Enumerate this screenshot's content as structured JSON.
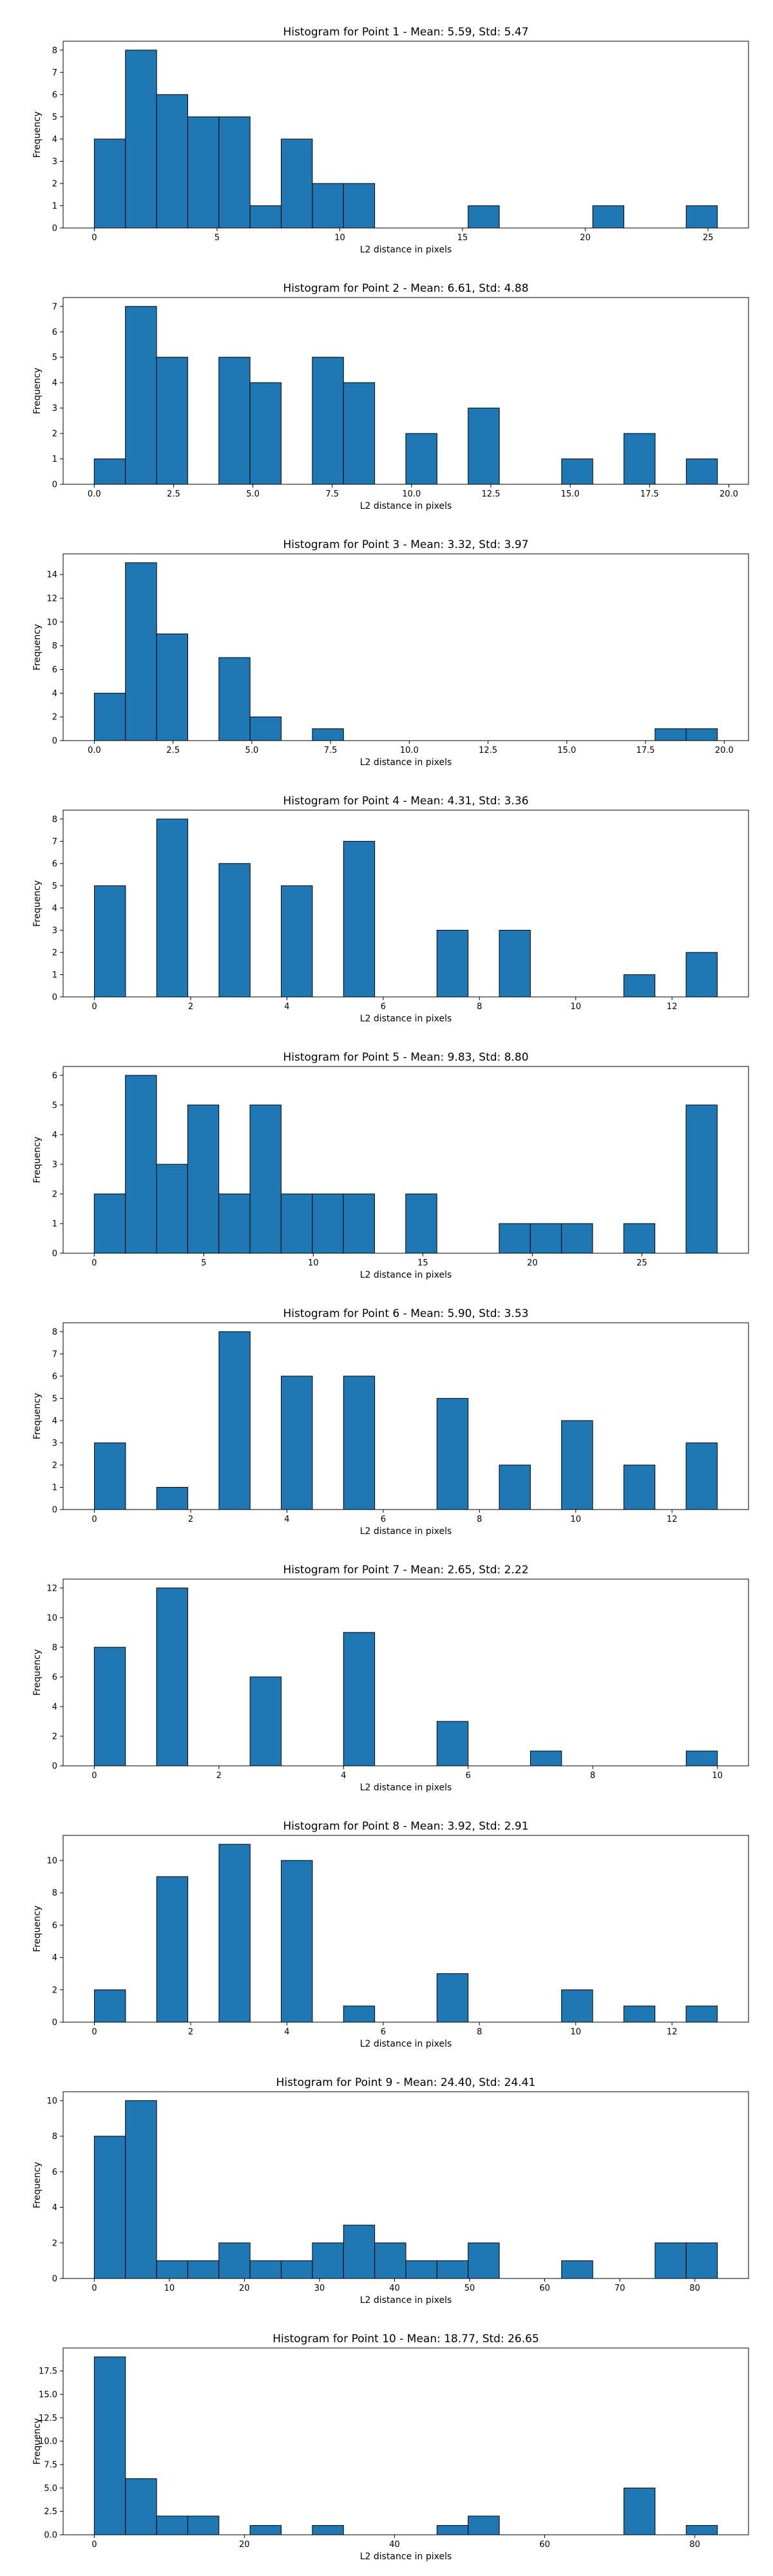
{
  "colors": {
    "bar_fill": "#1f77b4",
    "bar_edge": "#000000"
  },
  "chart_data": [
    {
      "type": "bar",
      "title": "Histogram for Point 1 - Mean: 5.59, Std: 5.47",
      "xlabel": "L2 distance in pixels",
      "ylabel": "Frequency",
      "grid": false,
      "xlim": [
        -1.27,
        26.65
      ],
      "ylim": [
        0,
        8.4
      ],
      "bin_start": 0.0,
      "bin_width": 1.269,
      "values": [
        4,
        8,
        6,
        5,
        5,
        1,
        4,
        2,
        2,
        0,
        0,
        0,
        1,
        0,
        0,
        0,
        1,
        0,
        0,
        1
      ],
      "xticks": [
        0,
        5,
        10,
        15,
        20,
        25
      ],
      "xtick_labels": [
        "0",
        "5",
        "10",
        "15",
        "20",
        "25"
      ],
      "yticks": [
        0,
        1,
        2,
        3,
        4,
        5,
        6,
        7,
        8
      ],
      "ytick_labels": [
        "0",
        "1",
        "2",
        "3",
        "4",
        "5",
        "6",
        "7",
        "8"
      ]
    },
    {
      "type": "bar",
      "title": "Histogram for Point 2 - Mean: 6.61, Std: 4.88",
      "xlabel": "L2 distance in pixels",
      "ylabel": "Frequency",
      "grid": false,
      "xlim": [
        -0.98,
        20.62
      ],
      "ylim": [
        0,
        7.35
      ],
      "bin_start": 0.0,
      "bin_width": 0.982,
      "values": [
        1,
        7,
        5,
        0,
        5,
        4,
        0,
        5,
        4,
        0,
        2,
        0,
        3,
        0,
        0,
        1,
        0,
        2,
        0,
        1
      ],
      "xticks": [
        0,
        2.5,
        5,
        7.5,
        10,
        12.5,
        15,
        17.5,
        20
      ],
      "xtick_labels": [
        "0.0",
        "2.5",
        "5.0",
        "7.5",
        "10.0",
        "12.5",
        "15.0",
        "17.5",
        "20.0"
      ],
      "yticks": [
        0,
        1,
        2,
        3,
        4,
        5,
        6,
        7
      ],
      "ytick_labels": [
        "0",
        "1",
        "2",
        "3",
        "4",
        "5",
        "6",
        "7"
      ]
    },
    {
      "type": "bar",
      "title": "Histogram for Point 3 - Mean: 3.32, Std: 3.97",
      "xlabel": "L2 distance in pixels",
      "ylabel": "Frequency",
      "grid": false,
      "xlim": [
        -0.99,
        20.77
      ],
      "ylim": [
        0,
        15.75
      ],
      "bin_start": 0.0,
      "bin_width": 0.989,
      "values": [
        4,
        15,
        9,
        0,
        7,
        2,
        0,
        1,
        0,
        0,
        0,
        0,
        0,
        0,
        0,
        0,
        0,
        0,
        1,
        1
      ],
      "xticks": [
        0,
        2.5,
        5,
        7.5,
        10,
        12.5,
        15,
        17.5,
        20
      ],
      "xtick_labels": [
        "0.0",
        "2.5",
        "5.0",
        "7.5",
        "10.0",
        "12.5",
        "15.0",
        "17.5",
        "20.0"
      ],
      "yticks": [
        0,
        2,
        4,
        6,
        8,
        10,
        12,
        14
      ],
      "ytick_labels": [
        "0",
        "2",
        "4",
        "6",
        "8",
        "10",
        "12",
        "14"
      ]
    },
    {
      "type": "bar",
      "title": "Histogram for Point 4 - Mean: 4.31, Std: 3.36",
      "xlabel": "L2 distance in pixels",
      "ylabel": "Frequency",
      "grid": false,
      "xlim": [
        -0.65,
        13.59
      ],
      "ylim": [
        0,
        8.4
      ],
      "bin_start": 0.0,
      "bin_width": 0.647,
      "values": [
        5,
        0,
        8,
        0,
        6,
        0,
        5,
        0,
        7,
        0,
        0,
        3,
        0,
        3,
        0,
        0,
        0,
        1,
        0,
        2
      ],
      "xticks": [
        0,
        2,
        4,
        6,
        8,
        10,
        12
      ],
      "xtick_labels": [
        "0",
        "2",
        "4",
        "6",
        "8",
        "10",
        "12"
      ],
      "yticks": [
        0,
        1,
        2,
        3,
        4,
        5,
        6,
        7,
        8
      ],
      "ytick_labels": [
        "0",
        "1",
        "2",
        "3",
        "4",
        "5",
        "6",
        "7",
        "8"
      ]
    },
    {
      "type": "bar",
      "title": "Histogram for Point 5 - Mean: 9.83, Std: 8.80",
      "xlabel": "L2 distance in pixels",
      "ylabel": "Frequency",
      "grid": false,
      "xlim": [
        -1.42,
        29.87
      ],
      "ylim": [
        0,
        6.3
      ],
      "bin_start": 0.0,
      "bin_width": 1.422,
      "values": [
        2,
        6,
        3,
        5,
        2,
        5,
        2,
        2,
        2,
        0,
        2,
        0,
        0,
        1,
        1,
        1,
        0,
        1,
        0,
        5
      ],
      "xticks": [
        0,
        5,
        10,
        15,
        20,
        25
      ],
      "xtick_labels": [
        "0",
        "5",
        "10",
        "15",
        "20",
        "25"
      ],
      "yticks": [
        0,
        1,
        2,
        3,
        4,
        5,
        6
      ],
      "ytick_labels": [
        "0",
        "1",
        "2",
        "3",
        "4",
        "5",
        "6"
      ]
    },
    {
      "type": "bar",
      "title": "Histogram for Point 6 - Mean: 5.90, Std: 3.53",
      "xlabel": "L2 distance in pixels",
      "ylabel": "Frequency",
      "grid": false,
      "xlim": [
        -0.65,
        13.59
      ],
      "ylim": [
        0,
        8.4
      ],
      "bin_start": 0.0,
      "bin_width": 0.647,
      "values": [
        3,
        0,
        1,
        0,
        8,
        0,
        6,
        0,
        6,
        0,
        0,
        5,
        0,
        2,
        0,
        4,
        0,
        2,
        0,
        3
      ],
      "xticks": [
        0,
        2,
        4,
        6,
        8,
        10,
        12
      ],
      "xtick_labels": [
        "0",
        "2",
        "4",
        "6",
        "8",
        "10",
        "12"
      ],
      "yticks": [
        0,
        1,
        2,
        3,
        4,
        5,
        6,
        7,
        8
      ],
      "ytick_labels": [
        "0",
        "1",
        "2",
        "3",
        "4",
        "5",
        "6",
        "7",
        "8"
      ]
    },
    {
      "type": "bar",
      "title": "Histogram for Point 7 - Mean: 2.65, Std: 2.22",
      "xlabel": "L2 distance in pixels",
      "ylabel": "Frequency",
      "grid": false,
      "xlim": [
        -0.5,
        10.5
      ],
      "ylim": [
        0,
        12.6
      ],
      "bin_start": 0.0,
      "bin_width": 0.5,
      "values": [
        8,
        0,
        12,
        0,
        0,
        6,
        0,
        0,
        9,
        0,
        0,
        3,
        0,
        0,
        1,
        0,
        0,
        0,
        0,
        1
      ],
      "xticks": [
        0,
        2,
        4,
        6,
        8,
        10
      ],
      "xtick_labels": [
        "0",
        "2",
        "4",
        "6",
        "8",
        "10"
      ],
      "yticks": [
        0,
        2,
        4,
        6,
        8,
        10,
        12
      ],
      "ytick_labels": [
        "0",
        "2",
        "4",
        "6",
        "8",
        "10",
        "12"
      ]
    },
    {
      "type": "bar",
      "title": "Histogram for Point 8 - Mean: 3.92, Std: 2.91",
      "xlabel": "L2 distance in pixels",
      "ylabel": "Frequency",
      "grid": false,
      "xlim": [
        -0.65,
        13.59
      ],
      "ylim": [
        0,
        11.55
      ],
      "bin_start": 0.0,
      "bin_width": 0.647,
      "values": [
        2,
        0,
        9,
        0,
        11,
        0,
        10,
        0,
        1,
        0,
        0,
        3,
        0,
        0,
        0,
        2,
        0,
        1,
        0,
        1
      ],
      "xticks": [
        0,
        2,
        4,
        6,
        8,
        10,
        12
      ],
      "xtick_labels": [
        "0",
        "2",
        "4",
        "6",
        "8",
        "10",
        "12"
      ],
      "yticks": [
        0,
        2,
        4,
        6,
        8,
        10
      ],
      "ytick_labels": [
        "0",
        "2",
        "4",
        "6",
        "8",
        "10"
      ]
    },
    {
      "type": "bar",
      "title": "Histogram for Point 9 - Mean: 24.40, Std: 24.41",
      "xlabel": "L2 distance in pixels",
      "ylabel": "Frequency",
      "grid": false,
      "xlim": [
        -4.15,
        87.15
      ],
      "ylim": [
        0,
        10.5
      ],
      "bin_start": 0.0,
      "bin_width": 4.15,
      "values": [
        8,
        10,
        1,
        1,
        2,
        1,
        1,
        2,
        3,
        2,
        1,
        1,
        2,
        0,
        0,
        1,
        0,
        0,
        2,
        2
      ],
      "xticks": [
        0,
        10,
        20,
        30,
        40,
        50,
        60,
        70,
        80
      ],
      "xtick_labels": [
        "0",
        "10",
        "20",
        "30",
        "40",
        "50",
        "60",
        "70",
        "80"
      ],
      "yticks": [
        0,
        2,
        4,
        6,
        8,
        10
      ],
      "ytick_labels": [
        "0",
        "2",
        "4",
        "6",
        "8",
        "10"
      ]
    },
    {
      "type": "bar",
      "title": "Histogram for Point 10 - Mean: 18.77, Std: 26.65",
      "xlabel": "L2 distance in pixels",
      "ylabel": "Frequency",
      "grid": false,
      "xlim": [
        -4.15,
        87.15
      ],
      "ylim": [
        0,
        19.95
      ],
      "bin_start": 0.0,
      "bin_width": 4.15,
      "values": [
        19,
        6,
        2,
        2,
        0,
        1,
        0,
        1,
        0,
        0,
        0,
        1,
        2,
        0,
        0,
        0,
        0,
        5,
        0,
        1
      ],
      "xticks": [
        0,
        20,
        40,
        60,
        80
      ],
      "xtick_labels": [
        "0",
        "20",
        "40",
        "60",
        "80"
      ],
      "yticks": [
        0,
        2.5,
        5,
        7.5,
        10,
        12.5,
        15,
        17.5
      ],
      "ytick_labels": [
        "0.0",
        "2.5",
        "5.0",
        "7.5",
        "10.0",
        "12.5",
        "15.0",
        "17.5"
      ]
    }
  ]
}
